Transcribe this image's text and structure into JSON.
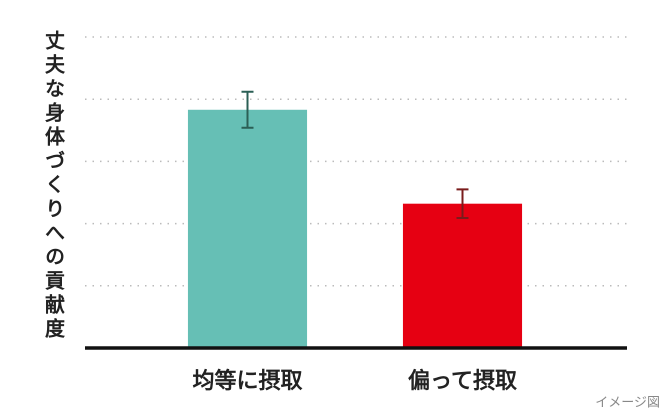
{
  "chart_data": {
    "type": "bar",
    "y_label": "丈夫な身体づくりへの貢献度",
    "annotation": "イメージ図",
    "categories": [
      "均等に摂取",
      "偏って摂取"
    ],
    "values": [
      3.83,
      2.32
    ],
    "errors": [
      0.29,
      0.23
    ],
    "colors": [
      "#66bfb5",
      "#e60012"
    ],
    "error_colors": [
      "#2b5f55",
      "#7a1c1c"
    ],
    "ylim": [
      0,
      5
    ],
    "yticks": [
      1,
      2,
      3,
      4,
      5
    ],
    "grid": true
  }
}
